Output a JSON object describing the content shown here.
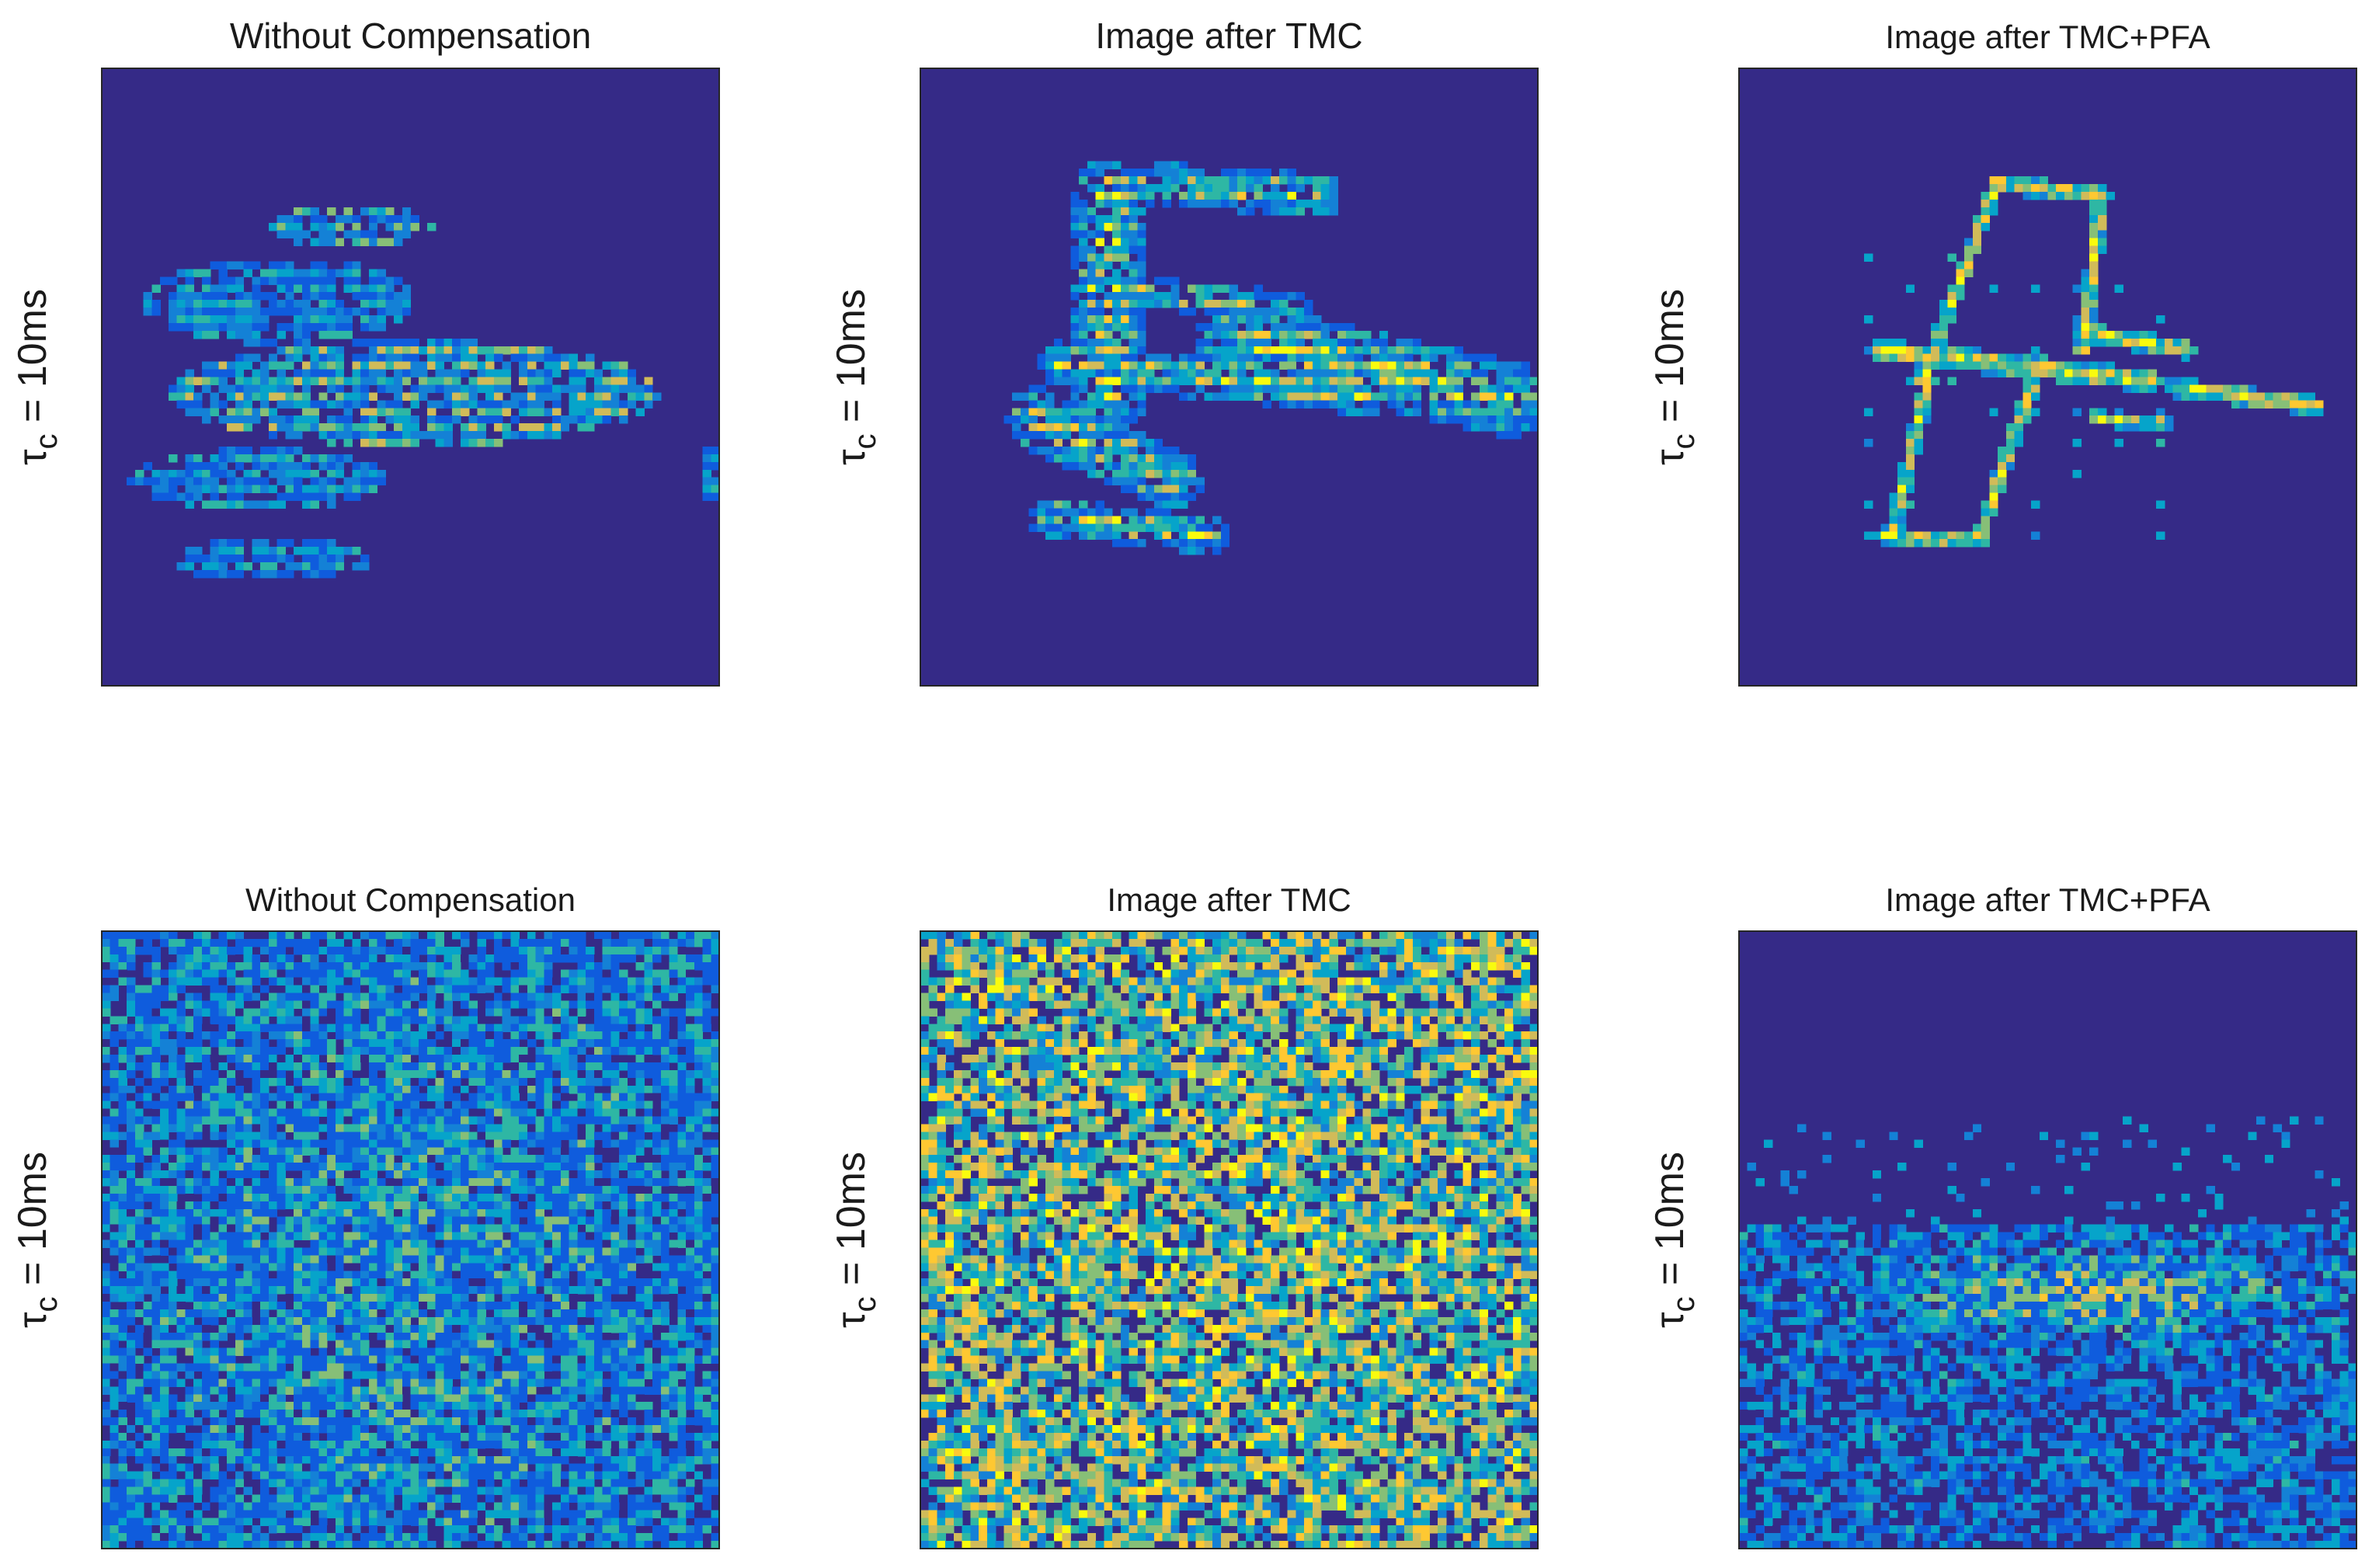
{
  "figure": {
    "colormap": "parula",
    "background_color": "#352A87",
    "colorscale": [
      "#352A87",
      "#0F5CDD",
      "#1481D6",
      "#06A4CA",
      "#2EB7A4",
      "#87BF77",
      "#D1BB59",
      "#FEC832",
      "#F9FB0E"
    ]
  },
  "chart_data": [
    {
      "type": "heatmap",
      "row": 1,
      "col": 1,
      "title": "Without Compensation",
      "ylabel": {
        "symbol": "τ",
        "subscript": "c",
        "rest": " = 10ms"
      },
      "content": "aircraft-image-defocused",
      "axis_ticks": "none"
    },
    {
      "type": "heatmap",
      "row": 1,
      "col": 2,
      "title": "Image after TMC",
      "ylabel": {
        "symbol": "τ",
        "subscript": "c",
        "rest": " = 10ms"
      },
      "content": "aircraft-image-partially-focused",
      "axis_ticks": "none"
    },
    {
      "type": "heatmap",
      "row": 1,
      "col": 3,
      "title": "Image after TMC+PFA",
      "ylabel": {
        "symbol": "τ",
        "subscript": "c",
        "rest": " = 10ms"
      },
      "content": "aircraft-image-focused",
      "axis_ticks": "none"
    },
    {
      "type": "heatmap",
      "row": 2,
      "col": 1,
      "title": "Without Compensation",
      "ylabel": {
        "symbol": "τ",
        "subscript": "c",
        "rest": " = 10ms"
      },
      "content": "noise-dominated",
      "axis_ticks": "none"
    },
    {
      "type": "heatmap",
      "row": 2,
      "col": 2,
      "title": "Image after TMC",
      "ylabel": {
        "symbol": "τ",
        "subscript": "c",
        "rest": " = 10ms"
      },
      "content": "noise-dominated-strong",
      "axis_ticks": "none"
    },
    {
      "type": "heatmap",
      "row": 2,
      "col": 3,
      "title": "Image after TMC+PFA",
      "ylabel": {
        "symbol": "τ",
        "subscript": "c",
        "rest": " = 10ms"
      },
      "content": "noise-lower-band",
      "axis_ticks": "none"
    }
  ]
}
